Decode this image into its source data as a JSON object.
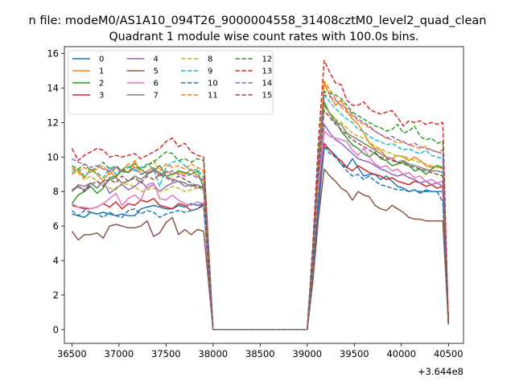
{
  "suptitle": "n file: modeM0/AS1A10_094T26_9000004558_31408cztM0_level2_quad_clean",
  "chart_data": {
    "type": "line",
    "title": "Quadrant 1 module wise count rates with 100.0s bins.",
    "xlabel": "",
    "ylabel": "",
    "offset_label": "+3.644e8",
    "xlim": [
      36420,
      40660
    ],
    "ylim": [
      -0.8,
      16.4
    ],
    "xticks": [
      36500,
      37000,
      37500,
      38000,
      38500,
      39000,
      39500,
      40000,
      40500
    ],
    "yticks": [
      0,
      2,
      4,
      6,
      8,
      10,
      12,
      14,
      16
    ],
    "grid": false,
    "legend": {
      "placement": "top-left",
      "columns": 4
    },
    "x": [
      36500,
      36567,
      36633,
      36700,
      36767,
      36833,
      36900,
      36967,
      37033,
      37100,
      37167,
      37233,
      37300,
      37367,
      37433,
      37500,
      37567,
      37633,
      37700,
      37767,
      37833,
      37900,
      38000,
      38967,
      39000,
      39060,
      39120,
      39180,
      39240,
      39300,
      39360,
      39420,
      39480,
      39540,
      39600,
      39660,
      39720,
      39780,
      39840,
      39900,
      39960,
      40020,
      40080,
      40140,
      40200,
      40260,
      40320,
      40380,
      40440,
      40500
    ],
    "series": [
      {
        "name": "0",
        "color": "#1f77b4",
        "dash": false,
        "values": [
          6.7,
          6.6,
          6.5,
          6.8,
          6.7,
          6.8,
          6.7,
          6.6,
          6.7,
          6.6,
          6.6,
          7.0,
          7.1,
          7.2,
          7.1,
          7.0,
          7.0,
          7.2,
          7.1,
          7.3,
          7.2,
          7.3,
          0,
          0,
          0,
          3.0,
          7.0,
          10.6,
          10.4,
          10.1,
          9.6,
          9.4,
          9.9,
          9.4,
          8.9,
          9.0,
          9.0,
          8.7,
          8.9,
          8.6,
          8.3,
          8.2,
          8.0,
          8.1,
          7.9,
          8.1,
          8.0,
          8.0,
          8.0,
          0.3
        ]
      },
      {
        "name": "1",
        "color": "#ff7f0e",
        "dash": false,
        "values": [
          9.4,
          9.2,
          8.8,
          9.3,
          9.0,
          8.6,
          9.2,
          8.8,
          9.3,
          9.1,
          9.8,
          9.0,
          9.2,
          9.4,
          8.9,
          9.2,
          9.0,
          9.1,
          9.0,
          9.3,
          8.9,
          8.6,
          0,
          0,
          0,
          4.0,
          10.0,
          14.3,
          13.6,
          13.0,
          13.3,
          12.7,
          12.2,
          11.9,
          11.4,
          10.8,
          10.5,
          10.4,
          10.0,
          9.9,
          10.1,
          10.0,
          9.8,
          10.0,
          9.8,
          9.5,
          9.4,
          9.5,
          9.3,
          0.3
        ]
      },
      {
        "name": "2",
        "color": "#2ca02c",
        "dash": false,
        "values": [
          7.3,
          7.8,
          8.0,
          8.3,
          7.9,
          8.2,
          8.8,
          8.9,
          9.2,
          9.1,
          9.4,
          9.3,
          9.0,
          9.2,
          9.5,
          8.9,
          9.0,
          9.2,
          9.1,
          9.0,
          9.2,
          8.2,
          0,
          0,
          0,
          3.8,
          9.0,
          13.2,
          12.5,
          12.2,
          11.5,
          11.1,
          10.7,
          10.5,
          10.2,
          10.0,
          10.3,
          9.9,
          9.8,
          9.5,
          9.6,
          9.7,
          9.5,
          9.2,
          9.3,
          9.0,
          9.3,
          9.5,
          9.4,
          0.3
        ]
      },
      {
        "name": "3",
        "color": "#d62728",
        "dash": false,
        "values": [
          7.2,
          7.1,
          7.0,
          7.0,
          7.1,
          7.3,
          7.1,
          7.4,
          7.0,
          7.3,
          7.2,
          7.5,
          7.4,
          7.6,
          7.2,
          7.1,
          7.0,
          7.3,
          7.2,
          6.9,
          7.0,
          7.3,
          0,
          0,
          0,
          3.4,
          7.8,
          10.8,
          10.4,
          10.0,
          9.8,
          9.4,
          9.2,
          9.5,
          9.3,
          9.1,
          9.0,
          8.9,
          8.7,
          8.8,
          8.6,
          8.5,
          8.4,
          8.6,
          8.5,
          8.3,
          8.4,
          8.2,
          8.3,
          0.3
        ]
      },
      {
        "name": "4",
        "color": "#9467bd",
        "dash": false,
        "values": [
          8.0,
          8.3,
          8.1,
          8.5,
          8.2,
          8.6,
          7.9,
          8.2,
          8.4,
          8.1,
          8.3,
          8.6,
          8.2,
          8.4,
          8.0,
          8.3,
          8.5,
          8.6,
          8.3,
          8.4,
          8.2,
          8.3,
          0,
          0,
          0,
          3.6,
          8.5,
          11.9,
          11.4,
          11.0,
          10.8,
          10.5,
          10.2,
          9.9,
          9.8,
          9.7,
          9.5,
          9.3,
          9.2,
          9.0,
          8.9,
          9.0,
          8.8,
          8.7,
          8.5,
          8.6,
          8.4,
          8.5,
          8.3,
          0.3
        ]
      },
      {
        "name": "5",
        "color": "#8c564b",
        "dash": false,
        "values": [
          5.7,
          5.2,
          5.5,
          5.5,
          5.6,
          5.3,
          6.0,
          6.1,
          6.0,
          5.9,
          5.9,
          6.0,
          6.3,
          5.4,
          5.6,
          6.2,
          6.5,
          5.5,
          5.8,
          5.5,
          5.8,
          5.7,
          0,
          0,
          0,
          2.8,
          6.5,
          9.3,
          8.9,
          8.6,
          8.2,
          8.0,
          7.5,
          8.0,
          7.8,
          7.7,
          7.2,
          7.0,
          6.9,
          7.2,
          7.0,
          6.8,
          6.5,
          6.4,
          6.4,
          6.3,
          6.3,
          6.3,
          6.3,
          0.3
        ]
      },
      {
        "name": "6",
        "color": "#e377c2",
        "dash": false,
        "values": [
          7.3,
          7.1,
          7.1,
          7.0,
          7.1,
          7.3,
          7.6,
          7.9,
          7.2,
          7.6,
          7.8,
          7.5,
          8.4,
          8.5,
          7.6,
          7.5,
          7.8,
          7.5,
          7.3,
          7.2,
          7.4,
          7.3,
          0,
          0,
          0,
          3.8,
          8.2,
          11.5,
          11.2,
          11.1,
          11.0,
          10.9,
          10.4,
          10.1,
          10.5,
          10.0,
          9.6,
          9.4,
          9.5,
          9.2,
          9.3,
          9.0,
          9.1,
          8.8,
          8.9,
          8.6,
          8.7,
          8.5,
          8.6,
          0.3
        ]
      },
      {
        "name": "7",
        "color": "#7f7f7f",
        "dash": false,
        "values": [
          8.0,
          8.4,
          8.3,
          8.5,
          8.2,
          8.6,
          8.7,
          8.8,
          8.5,
          8.6,
          8.9,
          8.7,
          9.0,
          9.3,
          9.1,
          8.9,
          8.7,
          8.6,
          8.5,
          8.3,
          8.4,
          8.2,
          0,
          0,
          0,
          4.2,
          9.5,
          13.0,
          12.5,
          12.0,
          11.9,
          11.4,
          11.2,
          11.0,
          10.8,
          10.6,
          10.4,
          10.2,
          10.0,
          9.9,
          9.7,
          9.8,
          9.6,
          9.5,
          9.4,
          9.3,
          9.2,
          9.2,
          9.1,
          0.3
        ]
      },
      {
        "name": "8",
        "color": "#bcbd22",
        "dash": true,
        "values": [
          9.3,
          9.1,
          8.7,
          8.9,
          8.6,
          8.4,
          8.2,
          8.1,
          8.5,
          8.4,
          8.3,
          8.0,
          8.1,
          8.2,
          8.0,
          8.1,
          8.3,
          8.2,
          8.0,
          8.1,
          8.2,
          8.1,
          0,
          0,
          0,
          4.0,
          9.2,
          12.9,
          12.6,
          12.2,
          12.0,
          11.7,
          11.4,
          11.2,
          11.1,
          10.9,
          10.6,
          10.5,
          10.3,
          10.2,
          10.0,
          10.1,
          9.9,
          9.8,
          9.7,
          9.6,
          9.5,
          9.4,
          9.3,
          0.3
        ]
      },
      {
        "name": "9",
        "color": "#17becf",
        "dash": true,
        "values": [
          9.1,
          9.3,
          8.9,
          9.2,
          9.1,
          8.8,
          9.4,
          9.0,
          9.3,
          9.5,
          9.2,
          9.4,
          9.6,
          9.3,
          8.3,
          9.4,
          9.7,
          9.8,
          9.5,
          9.2,
          9.3,
          8.8,
          0,
          0,
          0,
          4.4,
          9.8,
          13.6,
          13.2,
          12.8,
          12.5,
          12.2,
          12.0,
          11.6,
          11.5,
          11.2,
          11.0,
          10.9,
          10.7,
          10.8,
          10.6,
          10.4,
          10.5,
          10.3,
          10.2,
          10.4,
          10.1,
          10.0,
          9.9,
          0.3
        ]
      },
      {
        "name": "10",
        "color": "#1f77b4",
        "dash": true,
        "values": [
          6.9,
          6.6,
          6.9,
          6.8,
          6.7,
          6.5,
          6.8,
          6.6,
          6.5,
          6.9,
          7.0,
          6.7,
          6.9,
          6.8,
          6.5,
          6.7,
          6.8,
          6.9,
          6.8,
          6.9,
          7.0,
          7.2,
          0,
          0,
          0,
          3.4,
          7.6,
          10.6,
          10.2,
          10.0,
          9.6,
          9.2,
          8.9,
          9.0,
          8.7,
          8.9,
          8.6,
          8.4,
          8.3,
          8.2,
          8.1,
          8.1,
          8.0,
          8.1,
          8.0,
          8.0,
          8.0,
          8.0,
          7.4,
          0.3
        ]
      },
      {
        "name": "11",
        "color": "#ff7f0e",
        "dash": true,
        "values": [
          9.0,
          9.2,
          9.4,
          9.1,
          9.3,
          9.5,
          9.0,
          9.4,
          9.2,
          9.6,
          9.4,
          9.3,
          9.5,
          9.8,
          9.2,
          9.6,
          9.4,
          9.5,
          9.3,
          9.6,
          9.4,
          9.2,
          0,
          0,
          0,
          4.6,
          10.2,
          14.4,
          13.9,
          13.4,
          12.9,
          12.6,
          12.4,
          12.1,
          11.9,
          11.7,
          11.5,
          11.3,
          11.1,
          11.0,
          10.8,
          10.9,
          10.7,
          10.6,
          10.5,
          10.6,
          10.4,
          10.3,
          10.4,
          0.3
        ]
      },
      {
        "name": "12",
        "color": "#2ca02c",
        "dash": true,
        "values": [
          9.5,
          9.3,
          9.6,
          9.2,
          9.4,
          9.7,
          9.3,
          9.5,
          9.2,
          9.4,
          9.6,
          9.3,
          9.5,
          9.7,
          10.0,
          10.3,
          10.2,
          9.8,
          9.9,
          9.7,
          9.9,
          9.8,
          0,
          0,
          0,
          4.6,
          10.0,
          13.8,
          13.7,
          13.6,
          13.4,
          13.0,
          12.6,
          12.4,
          12.2,
          12.0,
          11.8,
          11.7,
          11.5,
          11.6,
          11.9,
          11.4,
          11.5,
          11.8,
          11.2,
          11.0,
          11.1,
          10.8,
          10.9,
          0.3
        ]
      },
      {
        "name": "13",
        "color": "#d62728",
        "dash": true,
        "values": [
          10.5,
          9.8,
          10.1,
          10.3,
          10.5,
          10.4,
          10.0,
          10.1,
          10.0,
          10.1,
          10.2,
          9.9,
          10.1,
          10.3,
          10.5,
          10.9,
          11.1,
          10.6,
          10.8,
          10.3,
          10.1,
          10.0,
          0,
          0,
          0,
          5.0,
          11.0,
          15.6,
          14.9,
          14.3,
          14.2,
          13.3,
          13.0,
          13.0,
          13.2,
          12.8,
          12.6,
          12.5,
          12.6,
          12.7,
          12.3,
          11.8,
          12.1,
          12.0,
          12.1,
          11.9,
          12.0,
          11.9,
          12.0,
          0.3
        ]
      },
      {
        "name": "14",
        "color": "#9467bd",
        "dash": true,
        "values": [
          9.9,
          9.7,
          9.6,
          9.4,
          9.5,
          9.3,
          9.2,
          9.4,
          9.1,
          9.2,
          9.3,
          9.0,
          9.1,
          9.2,
          9.0,
          9.1,
          9.2,
          9.0,
          8.9,
          9.0,
          8.8,
          8.7,
          0,
          0,
          0,
          4.4,
          9.8,
          13.6,
          13.5,
          13.3,
          13.0,
          12.8,
          12.5,
          12.2,
          12.0,
          11.8,
          11.5,
          11.3,
          11.1,
          11.2,
          11.0,
          10.9,
          10.7,
          10.8,
          10.6,
          10.5,
          10.4,
          10.3,
          10.2,
          0.3
        ]
      },
      {
        "name": "15",
        "color": "#8c564b",
        "dash": true,
        "values": [
          8.1,
          8.3,
          8.0,
          8.4,
          8.6,
          8.3,
          8.7,
          8.5,
          8.9,
          8.6,
          8.8,
          8.5,
          8.9,
          8.7,
          9.0,
          8.8,
          8.6,
          8.9,
          8.7,
          8.5,
          8.3,
          8.2,
          0,
          0,
          0,
          4.2,
          9.2,
          12.7,
          12.3,
          11.9,
          11.6,
          11.3,
          11.0,
          10.8,
          10.6,
          10.4,
          10.2,
          10.0,
          9.9,
          9.8,
          9.7,
          9.6,
          9.5,
          9.4,
          9.3,
          9.2,
          9.1,
          9.0,
          8.9,
          0.3
        ]
      }
    ]
  }
}
